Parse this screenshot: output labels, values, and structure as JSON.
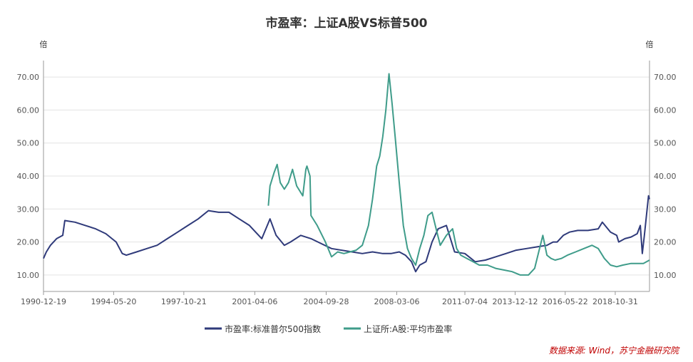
{
  "chart_data": {
    "type": "line",
    "title": "市盈率：上证A股VS标普500",
    "left_unit": "倍",
    "right_unit": "倍",
    "ylim": [
      5,
      75
    ],
    "y_ticks": [
      10,
      20,
      30,
      40,
      50,
      60,
      70
    ],
    "y_tick_labels": [
      "10.00",
      "20.00",
      "30.00",
      "40.00",
      "50.00",
      "60.00",
      "70.00"
    ],
    "x_range": [
      1990.96,
      2020.5
    ],
    "x_tick_labels": [
      "1990-12-19",
      "1994-05-20",
      "1997-10-21",
      "2001-04-06",
      "2004-09-28",
      "2008-03-06",
      "2011-07-04",
      "2013-12-12",
      "2016-05-22",
      "2018-10-31"
    ],
    "x_tick_positions": [
      1990.96,
      1994.38,
      1997.8,
      2001.26,
      2004.74,
      2008.18,
      2011.5,
      2013.95,
      2016.39,
      2018.83
    ],
    "grid": "horizontal",
    "legend_position": "bottom-center",
    "series": [
      {
        "name": "市盈率:标准普尔500指数",
        "color": "#2f3a7a",
        "x": [
          1990.96,
          1991.1,
          1991.3,
          1991.6,
          1991.9,
          1992.0,
          1992.5,
          1993.0,
          1993.5,
          1994.0,
          1994.5,
          1994.8,
          1995.0,
          1995.5,
          1996.0,
          1996.5,
          1997.0,
          1997.5,
          1998.0,
          1998.5,
          1999.0,
          1999.5,
          2000.0,
          2000.5,
          2001.0,
          2001.3,
          2001.6,
          2002.0,
          2002.3,
          2002.7,
          2003.0,
          2003.5,
          2004.0,
          2004.5,
          2005.0,
          2006.0,
          2006.5,
          2007.0,
          2007.5,
          2007.9,
          2008.3,
          2008.6,
          2008.9,
          2009.1,
          2009.3,
          2009.6,
          2009.9,
          2010.2,
          2010.6,
          2011.0,
          2011.5,
          2011.8,
          2012.0,
          2012.5,
          2013.0,
          2013.5,
          2014.0,
          2014.5,
          2015.0,
          2015.5,
          2015.8,
          2016.0,
          2016.3,
          2016.6,
          2017.0,
          2017.5,
          2018.0,
          2018.2,
          2018.6,
          2018.9,
          2019.0,
          2019.3,
          2019.6,
          2019.9,
          2020.05,
          2020.15,
          2020.25,
          2020.35,
          2020.45,
          2020.5
        ],
        "values": [
          15,
          17,
          19,
          21,
          22,
          26.5,
          26,
          25,
          24,
          22.5,
          20,
          16.5,
          16,
          17,
          18,
          19,
          21,
          23,
          25,
          27,
          29.5,
          29,
          29,
          27,
          25,
          23,
          21,
          27,
          22,
          19,
          20,
          22,
          21,
          19.5,
          18,
          17,
          16.5,
          17,
          16.5,
          16.5,
          17,
          16,
          14,
          11,
          13,
          14,
          20,
          24,
          25,
          17,
          16.5,
          15,
          14,
          14.5,
          15.5,
          16.5,
          17.5,
          18,
          18.5,
          19,
          20,
          20,
          22,
          23,
          23.5,
          23.5,
          24,
          26,
          23,
          22,
          20,
          21,
          21.5,
          22.5,
          25,
          16.5,
          22,
          28,
          34,
          33
        ]
      },
      {
        "name": "上证所:A股:平均市盈率",
        "color": "#3f9c8a",
        "x": [
          2001.92,
          2002.0,
          2002.2,
          2002.35,
          2002.5,
          2002.7,
          2002.9,
          2003.1,
          2003.3,
          2003.6,
          2003.75,
          2003.8,
          2003.95,
          2004.0,
          2004.3,
          2004.7,
          2005.0,
          2005.3,
          2005.6,
          2005.9,
          2006.2,
          2006.5,
          2006.8,
          2007.0,
          2007.2,
          2007.35,
          2007.5,
          2007.65,
          2007.8,
          2007.95,
          2008.1,
          2008.3,
          2008.5,
          2008.7,
          2008.9,
          2009.1,
          2009.3,
          2009.5,
          2009.7,
          2009.9,
          2010.1,
          2010.3,
          2010.6,
          2010.9,
          2011.1,
          2011.3,
          2011.6,
          2011.9,
          2012.2,
          2012.6,
          2013.0,
          2013.4,
          2013.8,
          2014.2,
          2014.6,
          2014.9,
          2015.1,
          2015.3,
          2015.5,
          2015.7,
          2015.9,
          2016.2,
          2016.5,
          2016.9,
          2017.3,
          2017.7,
          2018.0,
          2018.3,
          2018.6,
          2018.9,
          2019.2,
          2019.6,
          2019.9,
          2020.2,
          2020.5
        ],
        "values": [
          31,
          37,
          41,
          43.5,
          38,
          36,
          38,
          42,
          37,
          34,
          42,
          43,
          40,
          28,
          25,
          20,
          15.5,
          17,
          16.5,
          17,
          17.5,
          19,
          25,
          33,
          43,
          46,
          52,
          60,
          71,
          62,
          52,
          38,
          25,
          18,
          15,
          13,
          18,
          22,
          28,
          29,
          24,
          19,
          22,
          24,
          18,
          16,
          15,
          14,
          13,
          13,
          12,
          11.5,
          11,
          10,
          10,
          12,
          17,
          22,
          16,
          15,
          14.5,
          15,
          16,
          17,
          18,
          19,
          18,
          15,
          13,
          12.5,
          13,
          13.5,
          13.5,
          13.5,
          14.5
        ]
      }
    ]
  },
  "source": "数据来源: Wind，苏宁金融研究院"
}
